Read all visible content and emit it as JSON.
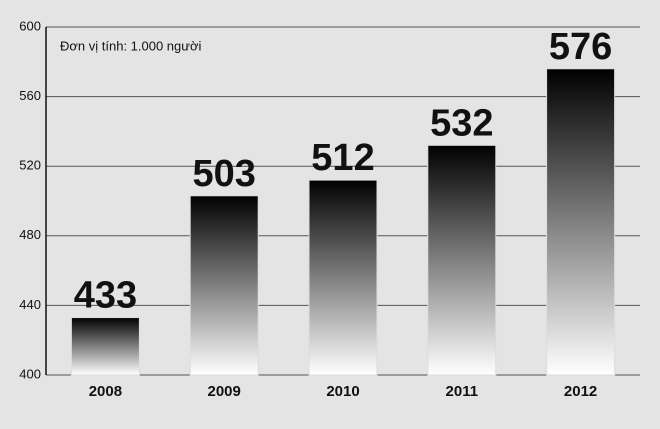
{
  "chart_data": {
    "type": "bar",
    "annotation": "Đơn vị tính: 1.000 người",
    "categories": [
      "2008",
      "2009",
      "2010",
      "2011",
      "2012"
    ],
    "values": [
      433,
      503,
      512,
      532,
      576
    ],
    "color": "#000000",
    "ylim": [
      400,
      600
    ],
    "yticks": [
      400,
      440,
      480,
      520,
      560,
      600
    ],
    "grid": true
  }
}
